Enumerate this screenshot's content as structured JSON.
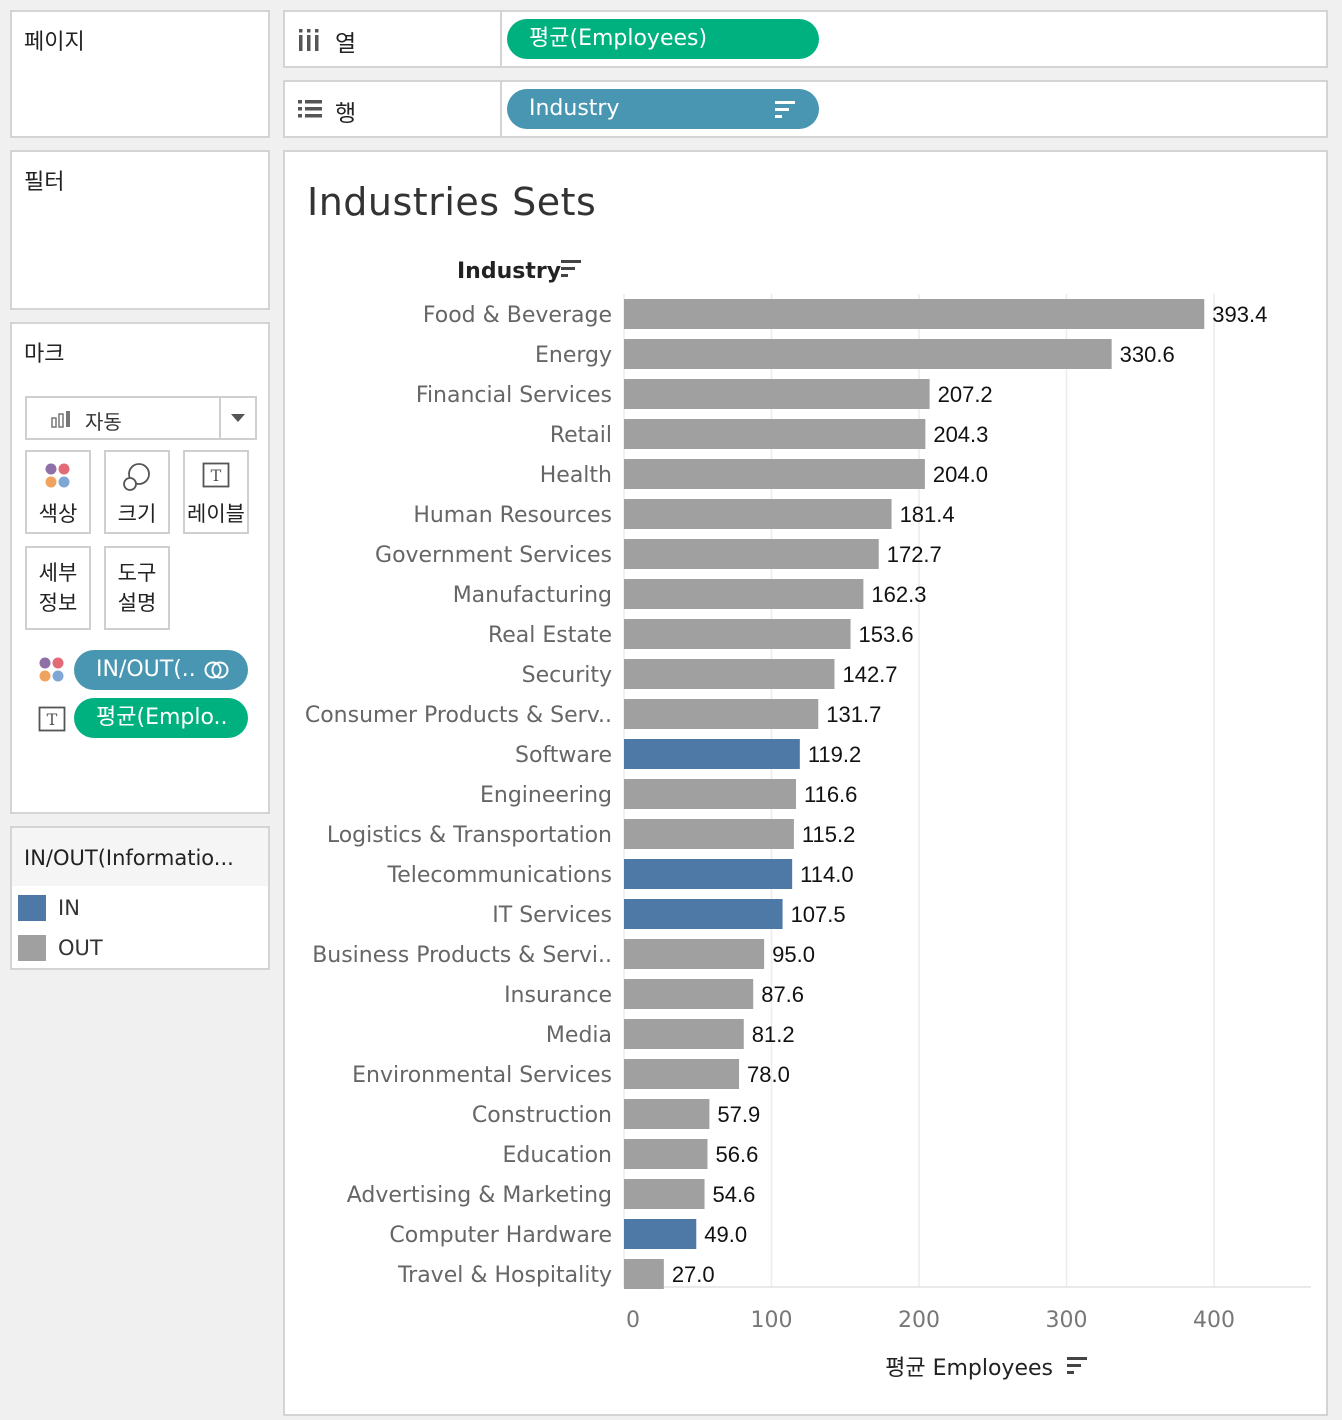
{
  "pages_panel": {
    "title": "페이지"
  },
  "filters_panel": {
    "title": "필터"
  },
  "marks_panel": {
    "title": "마크",
    "mark_type": "자동",
    "buttons": {
      "color": "색상",
      "size": "크기",
      "label": "레이블",
      "detail_line1": "세부",
      "detail_line2": "정보",
      "tooltip_line1": "도구",
      "tooltip_line2": "설명"
    },
    "pills": {
      "color_pill": "IN/OUT(..",
      "label_pill": "평균(Emplo.."
    }
  },
  "legend": {
    "title": "IN/OUT(Informatio...",
    "items": [
      {
        "label": "IN",
        "color": "#4e79a7"
      },
      {
        "label": "OUT",
        "color": "#a0a0a0"
      }
    ]
  },
  "columns_shelf": {
    "label": "열",
    "pill": "평균(Employees)"
  },
  "rows_shelf": {
    "label": "행",
    "pill": "Industry"
  },
  "chart_title": "Industries Sets",
  "chart_data": {
    "type": "bar",
    "orientation": "horizontal",
    "row_header": "Industry",
    "xlabel": "평균 Employees",
    "xlim": [
      0,
      460
    ],
    "xticks": [
      0,
      100,
      200,
      300,
      400
    ],
    "grid": true,
    "colors": {
      "IN": "#4e79a7",
      "OUT": "#a0a0a0"
    },
    "bars": [
      {
        "category": "Food & Beverage",
        "value": 393.4,
        "value_label": "393.4",
        "set": "OUT"
      },
      {
        "category": "Energy",
        "value": 330.6,
        "value_label": "330.6",
        "set": "OUT"
      },
      {
        "category": "Financial Services",
        "value": 207.2,
        "value_label": "207.2",
        "set": "OUT"
      },
      {
        "category": "Retail",
        "value": 204.3,
        "value_label": "204.3",
        "set": "OUT"
      },
      {
        "category": "Health",
        "value": 204.0,
        "value_label": "204.0",
        "set": "OUT"
      },
      {
        "category": "Human Resources",
        "value": 181.4,
        "value_label": "181.4",
        "set": "OUT"
      },
      {
        "category": "Government Services",
        "value": 172.7,
        "value_label": "172.7",
        "set": "OUT"
      },
      {
        "category": "Manufacturing",
        "value": 162.3,
        "value_label": "162.3",
        "set": "OUT"
      },
      {
        "category": "Real Estate",
        "value": 153.6,
        "value_label": "153.6",
        "set": "OUT"
      },
      {
        "category": "Security",
        "value": 142.7,
        "value_label": "142.7",
        "set": "OUT"
      },
      {
        "category": "Consumer Products & Serv..",
        "value": 131.7,
        "value_label": "131.7",
        "set": "OUT"
      },
      {
        "category": "Software",
        "value": 119.2,
        "value_label": "119.2",
        "set": "IN"
      },
      {
        "category": "Engineering",
        "value": 116.6,
        "value_label": "116.6",
        "set": "OUT"
      },
      {
        "category": "Logistics & Transportation",
        "value": 115.2,
        "value_label": "115.2",
        "set": "OUT"
      },
      {
        "category": "Telecommunications",
        "value": 114.0,
        "value_label": "114.0",
        "set": "IN"
      },
      {
        "category": "IT Services",
        "value": 107.5,
        "value_label": "107.5",
        "set": "IN"
      },
      {
        "category": "Business Products & Servi..",
        "value": 95.0,
        "value_label": "95.0",
        "set": "OUT"
      },
      {
        "category": "Insurance",
        "value": 87.6,
        "value_label": "87.6",
        "set": "OUT"
      },
      {
        "category": "Media",
        "value": 81.2,
        "value_label": "81.2",
        "set": "OUT"
      },
      {
        "category": "Environmental Services",
        "value": 78.0,
        "value_label": "78.0",
        "set": "OUT"
      },
      {
        "category": "Construction",
        "value": 57.9,
        "value_label": "57.9",
        "set": "OUT"
      },
      {
        "category": "Education",
        "value": 56.6,
        "value_label": "56.6",
        "set": "OUT"
      },
      {
        "category": "Advertising & Marketing",
        "value": 54.6,
        "value_label": "54.6",
        "set": "OUT"
      },
      {
        "category": "Computer Hardware",
        "value": 49.0,
        "value_label": "49.0",
        "set": "IN"
      },
      {
        "category": "Travel & Hospitality",
        "value": 27.0,
        "value_label": "27.0",
        "set": "OUT"
      }
    ]
  }
}
